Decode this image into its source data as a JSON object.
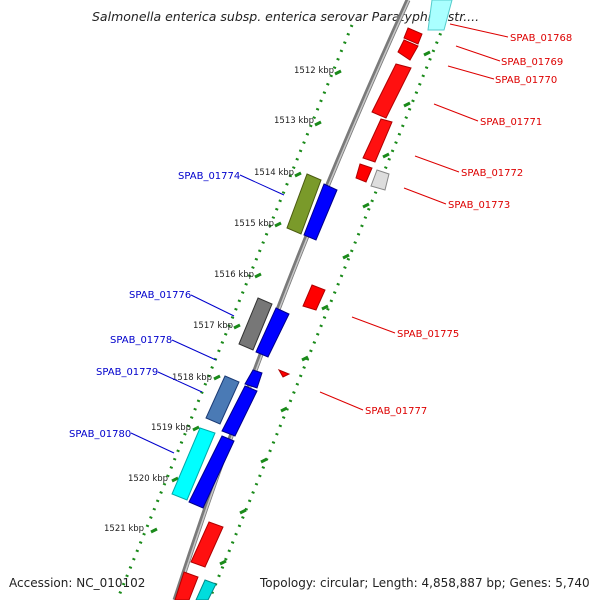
{
  "title": "Salmonella enterica subsp. enterica serovar Paratyphi B str....",
  "footer": {
    "accession": "Accession: NC_010102",
    "topology": "Topology: circular; Length: 4,858,887 bp; Genes: 5,740"
  },
  "colors": {
    "forward_label": "#0000cc",
    "reverse_label": "#dd0000",
    "backbone": "#8a8a8a",
    "tick_track": "#1a8a1a"
  },
  "kbp_labels": [
    "1512 kbp",
    "1513 kbp",
    "1514 kbp",
    "1515 kbp",
    "1516 kbp",
    "1517 kbp",
    "1518 kbp",
    "1519 kbp",
    "1520 kbp",
    "1521 kbp"
  ],
  "reverse_gene_labels": [
    "SPAB_01768",
    "SPAB_01769",
    "SPAB_01770",
    "SPAB_01771",
    "SPAB_01772",
    "SPAB_01773",
    "SPAB_01775",
    "SPAB_01777"
  ],
  "forward_gene_labels": [
    "SPAB_01774",
    "SPAB_01776",
    "SPAB_01778",
    "SPAB_01779",
    "SPAB_01780"
  ]
}
